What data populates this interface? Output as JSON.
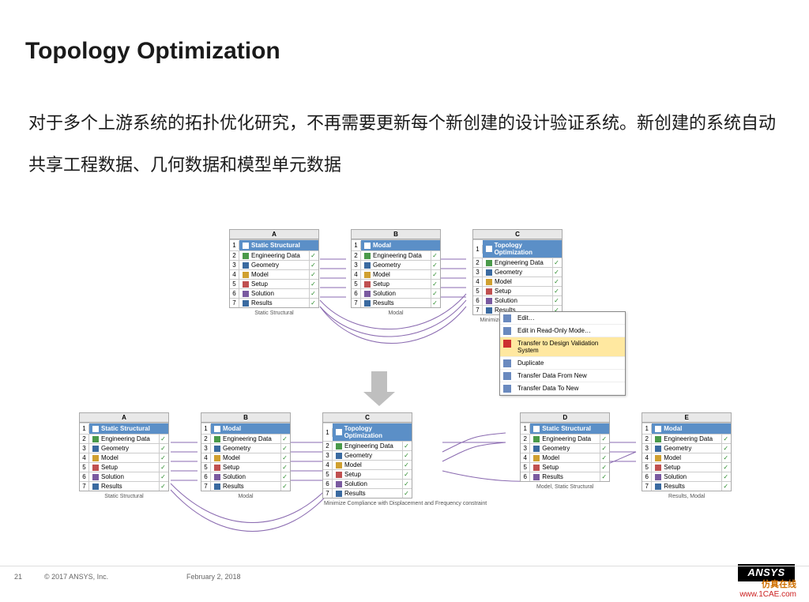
{
  "title": "Topology Optimization",
  "body": "对于多个上游系统的拓扑优化研究，不再需要更新每个新创建的设计验证系统。新创建的系统自动共享工程数据、几何数据和模型单元数据",
  "colors": {
    "header_bg": "#5b8fc7",
    "header_fg": "#ffffff",
    "check": "#2a8a2a",
    "arrow": "#bfbfbf",
    "link": "#8a6ab0",
    "menu_hl": "#ffe8a0"
  },
  "row1": [
    {
      "col": "A",
      "title": "Static Structural",
      "items": [
        "Engineering Data",
        "Geometry",
        "Model",
        "Setup",
        "Solution",
        "Results"
      ],
      "caption": "Static Structural"
    },
    {
      "col": "B",
      "title": "Modal",
      "items": [
        "Engineering Data",
        "Geometry",
        "Model",
        "Setup",
        "Solution",
        "Results"
      ],
      "caption": "Modal"
    },
    {
      "col": "C",
      "title": "Topology Optimization",
      "items": [
        "Engineering Data",
        "Geometry",
        "Model",
        "Setup",
        "Solution",
        "Results"
      ],
      "caption": "Minimize Compliance with D…"
    }
  ],
  "row2": [
    {
      "col": "A",
      "title": "Static Structural",
      "items": [
        "Engineering Data",
        "Geometry",
        "Model",
        "Setup",
        "Solution",
        "Results"
      ],
      "caption": "Static Structural"
    },
    {
      "col": "B",
      "title": "Modal",
      "items": [
        "Engineering Data",
        "Geometry",
        "Model",
        "Setup",
        "Solution",
        "Results"
      ],
      "caption": "Modal"
    },
    {
      "col": "C",
      "title": "Topology Optimization",
      "items": [
        "Engineering Data",
        "Geometry",
        "Model",
        "Setup",
        "Solution",
        "Results"
      ],
      "caption": "Minimize Compliance with Displacement and Frequency constraint"
    },
    {
      "col": "D",
      "title": "Static Structural",
      "items": [
        "Engineering Data",
        "Geometry",
        "Model",
        "Setup",
        "Results"
      ],
      "caption": "Model, Static Structural"
    },
    {
      "col": "E",
      "title": "Modal",
      "items": [
        "Engineering Data",
        "Geometry",
        "Model",
        "Setup",
        "Solution",
        "Results"
      ],
      "caption": "Results, Modal"
    }
  ],
  "menu": {
    "items": [
      {
        "label": "Edit…",
        "hl": false
      },
      {
        "label": "Edit in Read-Only Mode…",
        "hl": false
      },
      {
        "label": "Transfer to Design Validation System",
        "hl": true
      },
      {
        "label": "Duplicate",
        "hl": false
      },
      {
        "label": "Transfer Data From New",
        "hl": false
      },
      {
        "label": "Transfer Data To New",
        "hl": false
      }
    ]
  },
  "footer": {
    "page": "21",
    "copyright": "© 2017 ANSYS, Inc.",
    "date": "February 2, 2018",
    "logo": "ANSYS"
  },
  "watermark": {
    "cn": "仿真在线",
    "url": "www.1CAE.com"
  },
  "icon_colors": [
    "#4a9a4a",
    "#3a6aa0",
    "#d0a030",
    "#c05050",
    "#7a5aa0",
    "#3a6aa0"
  ]
}
